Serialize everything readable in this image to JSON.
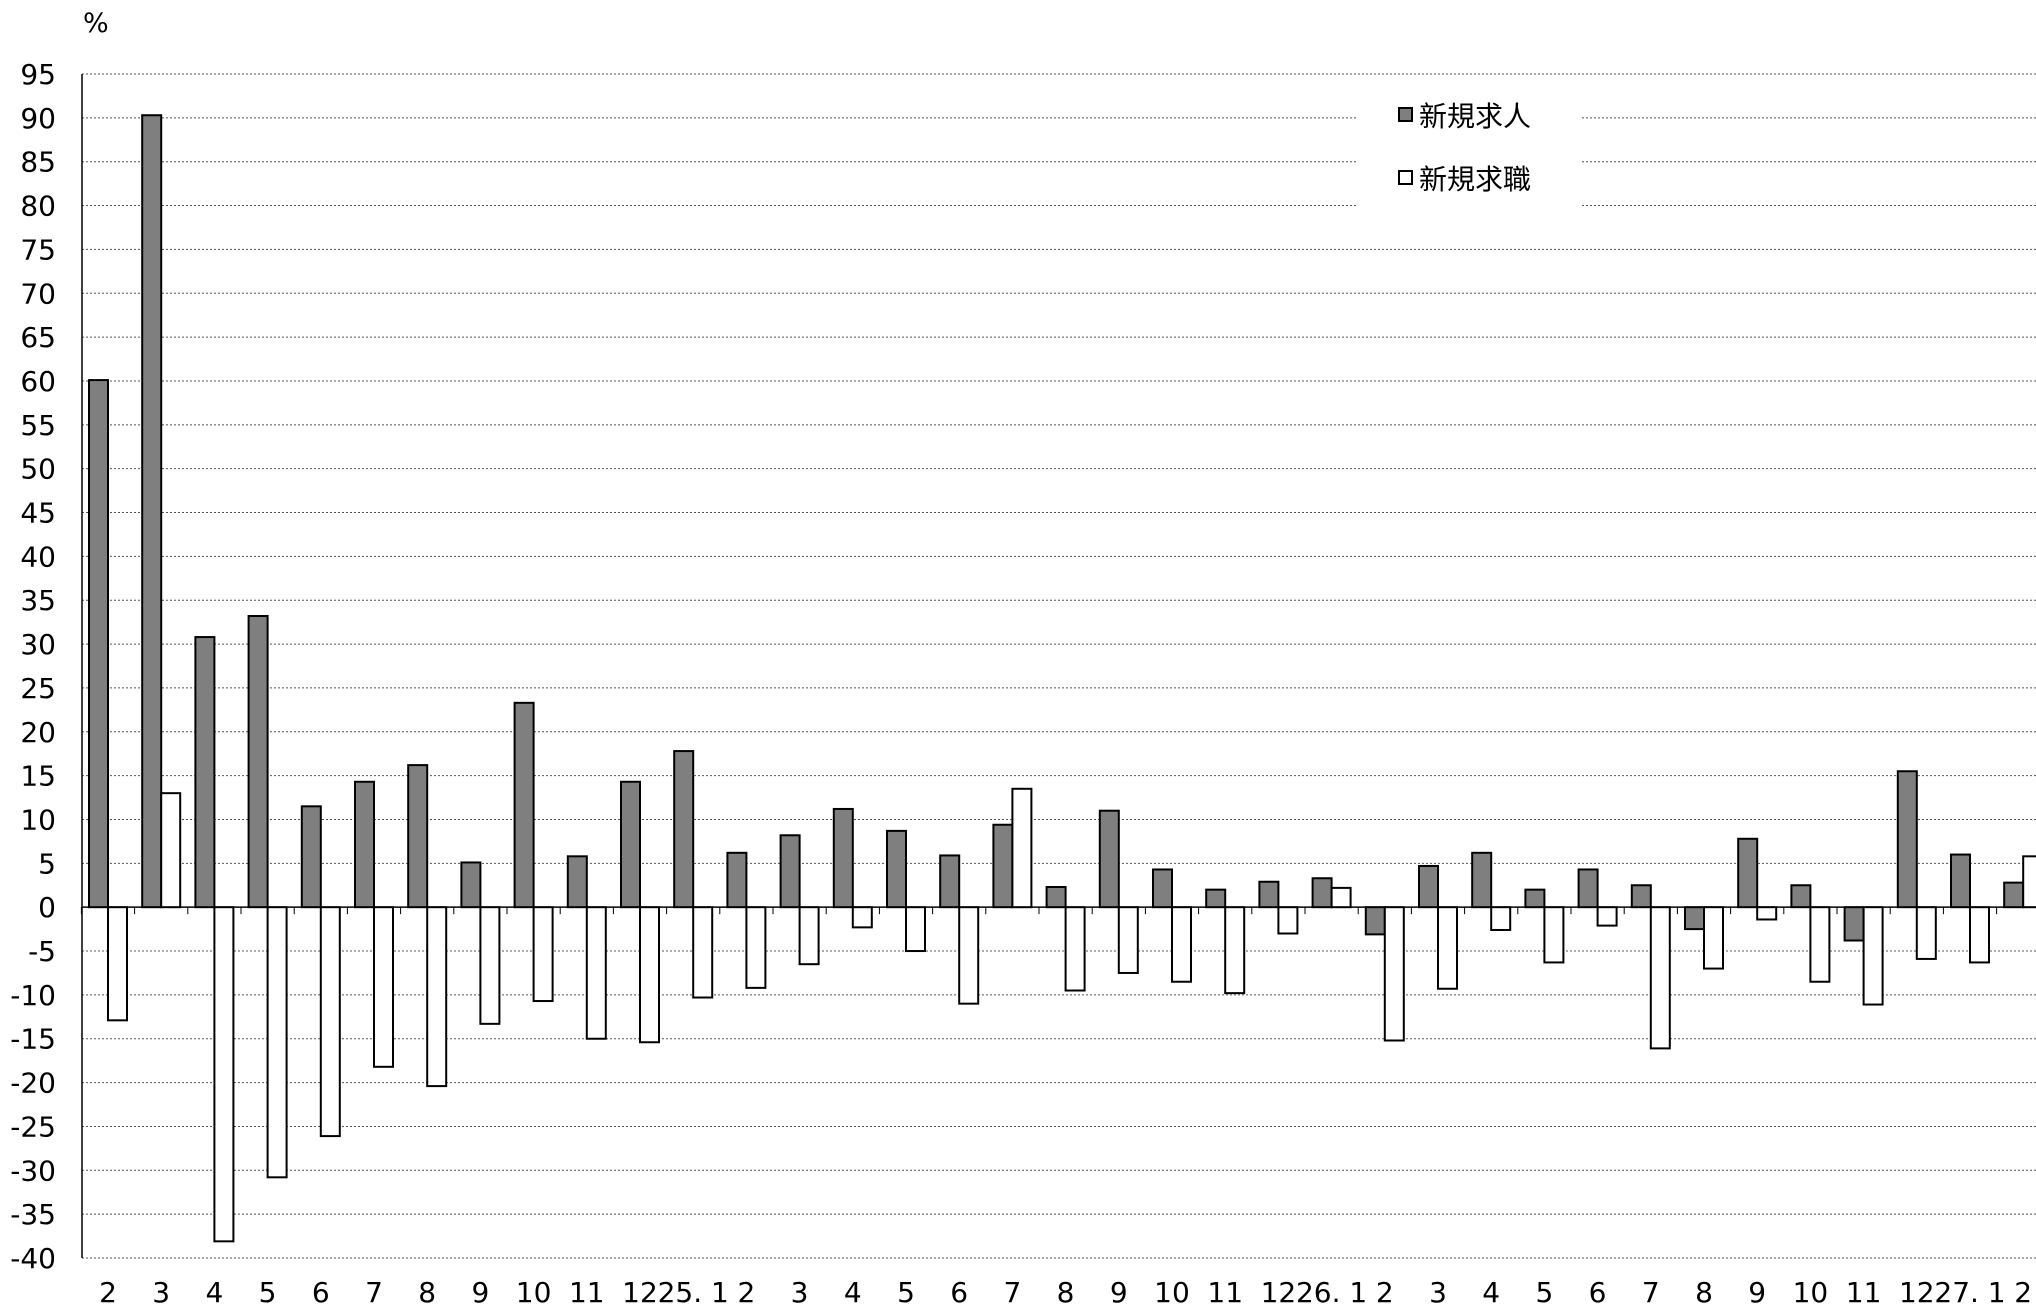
{
  "chart_data": {
    "type": "bar",
    "title": "",
    "xlabel": "",
    "ylabel": "%",
    "ylim": [
      -40,
      95
    ],
    "ytick_step": 5,
    "grid": true,
    "legend_position": "top-right",
    "categories": [
      "2",
      "3",
      "4",
      "5",
      "6",
      "7",
      "8",
      "9",
      "10",
      "11",
      "12",
      "25. 1",
      "2",
      "3",
      "4",
      "5",
      "6",
      "7",
      "8",
      "9",
      "10",
      "11",
      "12",
      "26. 1",
      "2",
      "3",
      "4",
      "5",
      "6",
      "7",
      "8",
      "9",
      "10",
      "11",
      "12",
      "27. 1",
      "2"
    ],
    "series": [
      {
        "name": "新規求人",
        "color": "#7f7f7f",
        "values": [
          60.1,
          90.3,
          30.8,
          33.2,
          11.5,
          14.3,
          16.2,
          5.1,
          23.3,
          5.8,
          14.3,
          17.8,
          6.2,
          8.2,
          11.2,
          8.7,
          5.9,
          9.4,
          2.3,
          11.0,
          4.3,
          2.0,
          2.9,
          3.3,
          -3.1,
          4.7,
          6.2,
          2.0,
          4.3,
          2.5,
          -2.5,
          7.8,
          2.5,
          -3.8,
          15.5,
          6.0,
          2.8
        ]
      },
      {
        "name": "新規求職",
        "color": "#ffffff",
        "values": [
          -12.9,
          13.0,
          -38.1,
          -30.8,
          -26.1,
          -18.2,
          -20.4,
          -13.3,
          -10.7,
          -15.0,
          -15.4,
          -10.3,
          -9.2,
          -6.5,
          -2.3,
          -5.0,
          -11.0,
          13.5,
          -9.5,
          -7.5,
          -8.5,
          -9.8,
          -3.0,
          2.2,
          -15.2,
          -9.3,
          -2.6,
          -6.3,
          -2.1,
          -16.1,
          -7.0,
          -1.4,
          -8.5,
          -11.1,
          -5.9,
          -6.3,
          5.8
        ]
      }
    ]
  }
}
